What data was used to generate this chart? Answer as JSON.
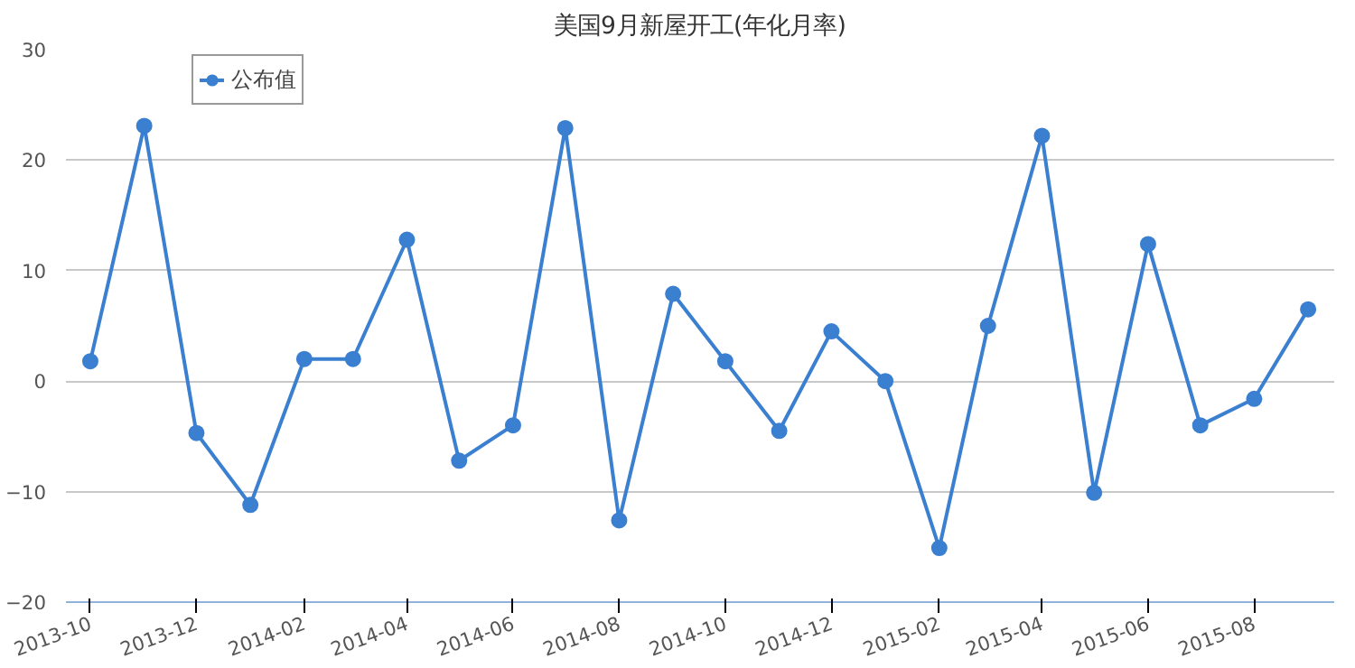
{
  "chart_data": {
    "type": "line",
    "title": "美国9月新屋开工(年化月率)",
    "x": [
      "2013-10",
      "2013-11",
      "2013-12",
      "2014-01",
      "2014-02",
      "2014-03",
      "2014-04",
      "2014-05",
      "2014-06",
      "2014-07",
      "2014-08",
      "2014-09",
      "2014-10",
      "2014-11",
      "2014-12",
      "2015-01",
      "2015-02",
      "2015-03",
      "2015-04",
      "2015-05",
      "2015-06",
      "2015-07",
      "2015-08",
      "2015-09"
    ],
    "series": [
      {
        "name": "公布值",
        "color": "#3a7fd0",
        "values": [
          1.8,
          23.1,
          -4.7,
          -11.2,
          2.0,
          2.0,
          12.8,
          -7.2,
          -4.0,
          22.9,
          -12.6,
          7.9,
          1.8,
          -4.5,
          4.5,
          0,
          -15.1,
          5.0,
          22.2,
          -10.1,
          12.4,
          -4.0,
          -1.6,
          6.5
        ]
      }
    ],
    "xlim": [
      "2013-09-17",
      "2015-09-16"
    ],
    "xticks": [
      "2013-10",
      "2013-12",
      "2014-02",
      "2014-04",
      "2014-06",
      "2014-08",
      "2014-10",
      "2014-12",
      "2015-02",
      "2015-04",
      "2015-06",
      "2015-08"
    ],
    "ylim": [
      -20,
      30
    ],
    "yticks": [
      -20,
      -10,
      0,
      10,
      20,
      30
    ],
    "grid": "y",
    "legend": "top left",
    "marker": "circle",
    "line_style": "solid"
  }
}
